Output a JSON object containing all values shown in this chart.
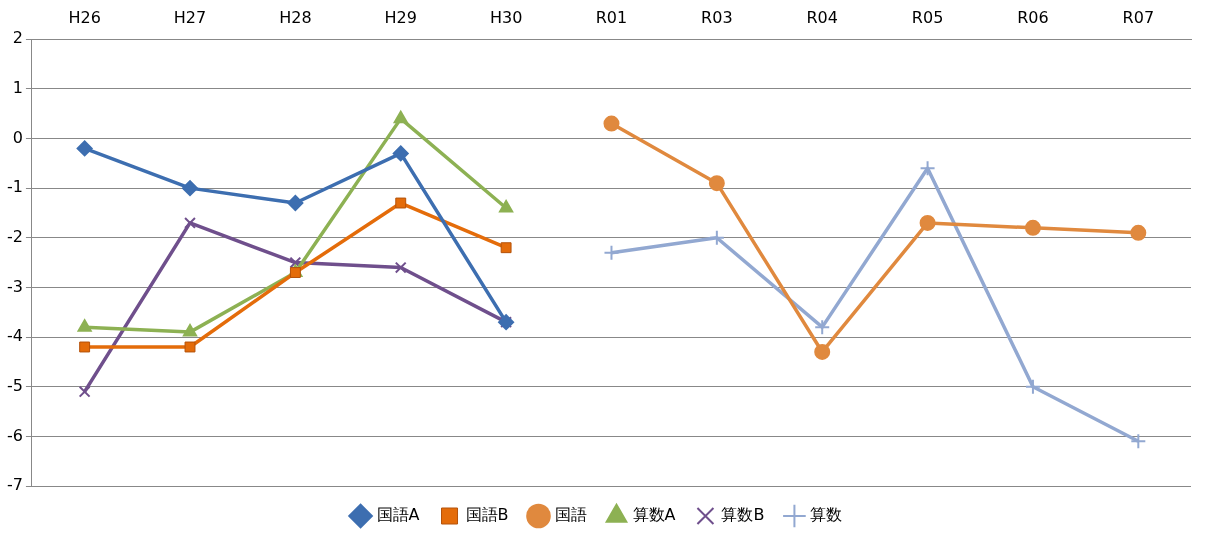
{
  "chart_data": {
    "type": "line",
    "categories": [
      "H26",
      "H27",
      "H28",
      "H29",
      "H30",
      "R01",
      "R03",
      "R04",
      "R05",
      "R06",
      "R07"
    ],
    "ylim": [
      -7,
      2
    ],
    "yticks": [
      -7,
      -6,
      -5,
      -4,
      -3,
      -2,
      -1,
      0,
      1,
      2
    ],
    "grid": "y",
    "legend": "bottom",
    "series": [
      {
        "name": "国語A",
        "color": "#3d6eb0",
        "marker": "diamond",
        "values": [
          -0.2,
          -1.0,
          -1.3,
          -0.3,
          -3.7,
          null,
          null,
          null,
          null,
          null,
          null
        ]
      },
      {
        "name": "国語B",
        "color": "#e46c0a",
        "marker": "square",
        "values": [
          -4.2,
          -4.2,
          -2.7,
          -1.3,
          -2.2,
          null,
          null,
          null,
          null,
          null,
          null
        ]
      },
      {
        "name": "国語",
        "color": "#e0893e",
        "marker": "circle",
        "values": [
          null,
          null,
          null,
          null,
          null,
          0.3,
          -0.9,
          -4.3,
          -1.7,
          -1.8,
          -1.9
        ]
      },
      {
        "name": "算数A",
        "color": "#8db153",
        "marker": "triangle",
        "values": [
          -3.8,
          -3.9,
          -2.7,
          0.4,
          -1.4,
          null,
          null,
          null,
          null,
          null,
          null
        ]
      },
      {
        "name": "算数B",
        "color": "#6f4f8c",
        "marker": "cross",
        "values": [
          -5.1,
          -1.7,
          -2.5,
          -2.6,
          -3.7,
          null,
          null,
          null,
          null,
          null,
          null
        ]
      },
      {
        "name": "算数",
        "color": "#92a8d1",
        "marker": "plus",
        "values": [
          null,
          null,
          null,
          null,
          null,
          -2.3,
          -2.0,
          -3.8,
          -0.6,
          -5.0,
          -6.1
        ]
      }
    ]
  }
}
